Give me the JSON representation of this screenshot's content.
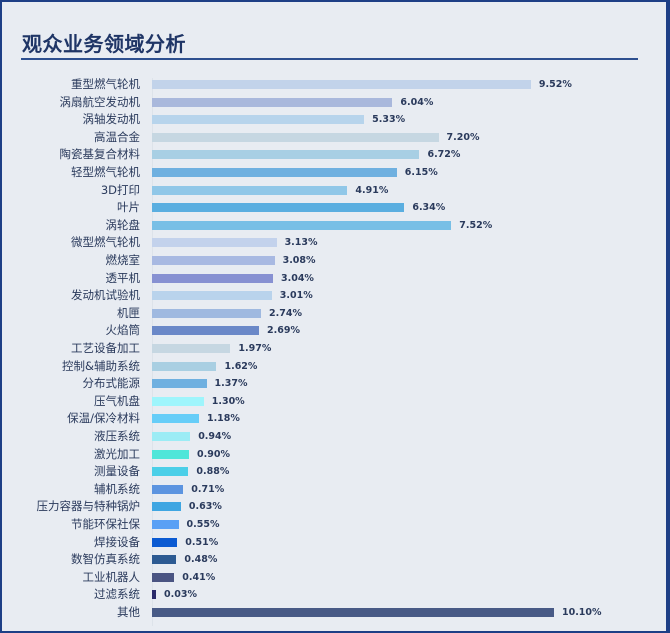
{
  "title": "观众业务领域分析",
  "chart_data": {
    "type": "bar",
    "orientation": "horizontal",
    "title": "观众业务领域分析",
    "xlabel": "",
    "ylabel": "",
    "unit": "%",
    "categories": [
      "重型燃气轮机",
      "涡扇航空发动机",
      "涡轴发动机",
      "高温合金",
      "陶瓷基复合材料",
      "轻型燃气轮机",
      "3D打印",
      "叶片",
      "涡轮盘",
      "微型燃气轮机",
      "燃烧室",
      "透平机",
      "发动机试验机",
      "机匣",
      "火焰筒",
      "工艺设备加工",
      "控制&辅助系统",
      "分布式能源",
      "压气机盘",
      "保温/保冷材料",
      "液压系统",
      "激光加工",
      "测量设备",
      "辅机系统",
      "压力容器与特种锅炉",
      "节能环保社保",
      "焊接设备",
      "数智仿真系统",
      "工业机器人",
      "过滤系统",
      "其他"
    ],
    "values": [
      9.52,
      6.04,
      5.33,
      7.2,
      6.72,
      6.15,
      4.91,
      6.34,
      7.52,
      3.13,
      3.08,
      3.04,
      3.01,
      2.74,
      2.69,
      1.97,
      1.62,
      1.37,
      1.3,
      1.18,
      0.94,
      0.9,
      0.88,
      0.71,
      0.63,
      0.55,
      0.51,
      0.48,
      0.41,
      0.03,
      10.1
    ],
    "value_labels": [
      "9.52%",
      "6.04%",
      "5.33%",
      "7.20%",
      "6.72%",
      "6.15%",
      "4.91%",
      "6.34%",
      "7.52%",
      "3.13%",
      "3.08%",
      "3.04%",
      "3.01%",
      "2.74%",
      "2.69%",
      "1.97%",
      "1.62%",
      "1.37%",
      "1.30%",
      "1.18%",
      "0.94%",
      "0.90%",
      "0.88%",
      "0.71%",
      "0.63%",
      "0.55%",
      "0.51%",
      "0.48%",
      "0.41%",
      "0.03%",
      "10.10%"
    ],
    "colors": [
      "#c2d3ea",
      "#a9b8dc",
      "#b7d4ec",
      "#c6d7e2",
      "#a8cfe4",
      "#6fb0e0",
      "#90c7e8",
      "#5aaee0",
      "#78bfe6",
      "#c3d2ec",
      "#a8b9e2",
      "#8791d2",
      "#b9d3ec",
      "#9fb9e0",
      "#6a88c8",
      "#c6d7e2",
      "#a9cfe2",
      "#6fb0e0",
      "#9ef5fc",
      "#66cdf8",
      "#9cecf5",
      "#4fe6d9",
      "#4bcfe8",
      "#5c94e0",
      "#3fa6e2",
      "#5aa0f5",
      "#0b5ad2",
      "#2c5a92",
      "#4a5482",
      "#2a2a6a",
      "#485a86"
    ],
    "xlim": [
      0,
      10.5
    ],
    "grid": false,
    "legend": "none"
  }
}
